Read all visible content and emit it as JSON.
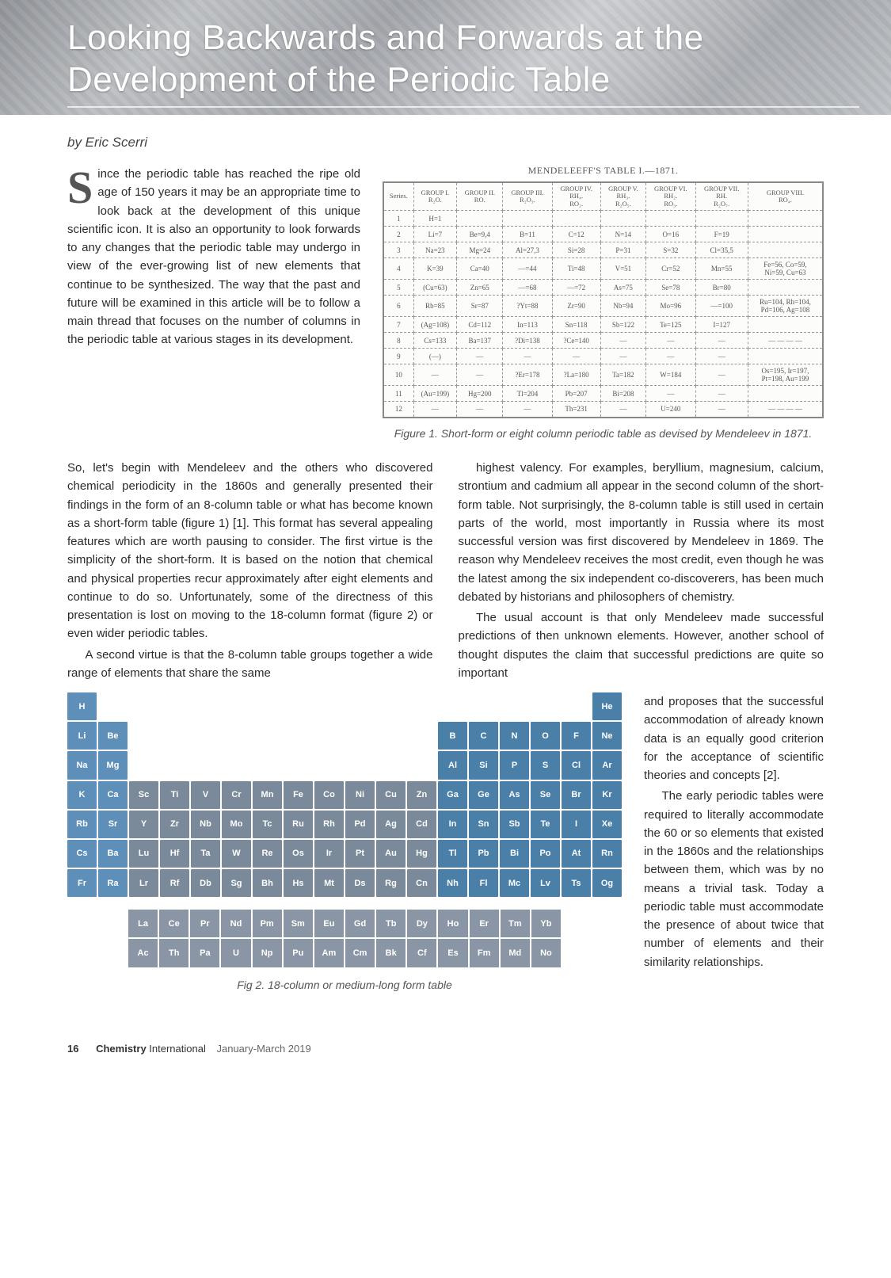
{
  "header": {
    "title": "Looking Backwards and Forwards at the Development of the Periodic Table"
  },
  "byline": "by Eric Scerri",
  "intro_dropcap": "S",
  "intro_text": "ince the periodic table has reached the ripe old age of 150 years it may be an appropriate time to look back at the development of this unique scientific icon. It is also an opportunity to look forwards to any changes that the periodic table may undergo in view of the ever-growing list of new elements that continue to be synthesized. The way that the past and future will be examined in this article will be to follow a main thread that focuses on the number of columns in the periodic table at various stages in its development.",
  "fig1": {
    "top_caption": "MENDELEEFF'S TABLE I.—1871.",
    "headers": [
      "Series.",
      "GROUP I.\nR₂O.",
      "GROUP II.\nRO.",
      "GROUP III.\nR₂O₃.",
      "GROUP IV.\nRH₄.\nRO₂.",
      "GROUP V.\nRH₃.\nR₂O₅.",
      "GROUP VI.\nRH₂.\nRO₃.",
      "GROUP VII.\nRH.\nR₂O₇.",
      "GROUP VIII.\nRO₄."
    ],
    "rows": [
      [
        "1",
        "H=1",
        "",
        "",
        "",
        "",
        "",
        "",
        ""
      ],
      [
        "2",
        "Li=7",
        "Be=9,4",
        "B=11",
        "C=12",
        "N=14",
        "O=16",
        "F=19",
        ""
      ],
      [
        "3",
        "Na=23",
        "Mg=24",
        "Al=27,3",
        "Si=28",
        "P=31",
        "S=32",
        "Cl=35,5",
        ""
      ],
      [
        "4",
        "K=39",
        "Ca=40",
        "—=44",
        "Ti=48",
        "V=51",
        "Cr=52",
        "Mn=55",
        "Fe=56, Co=59,\nNi=59, Cu=63"
      ],
      [
        "5",
        "(Cu=63)",
        "Zn=65",
        "—=68",
        "—=72",
        "As=75",
        "Se=78",
        "Br=80",
        ""
      ],
      [
        "6",
        "Rb=85",
        "Sr=87",
        "?Yt=88",
        "Zr=90",
        "Nb=94",
        "Mo=96",
        "—=100",
        "Ru=104, Rh=104,\nPd=106, Ag=108"
      ],
      [
        "7",
        "(Ag=108)",
        "Cd=112",
        "In=113",
        "Sn=118",
        "Sb=122",
        "Te=125",
        "I=127",
        ""
      ],
      [
        "8",
        "Cs=133",
        "Ba=137",
        "?Di=138",
        "?Ce=140",
        "—",
        "—",
        "—",
        "— — — —"
      ],
      [
        "9",
        "(—)",
        "—",
        "—",
        "—",
        "—",
        "—",
        "—",
        ""
      ],
      [
        "10",
        "—",
        "—",
        "?Er=178",
        "?La=180",
        "Ta=182",
        "W=184",
        "—",
        "Os=195, Ir=197,\nPt=198, Au=199"
      ],
      [
        "11",
        "(Au=199)",
        "Hg=200",
        "Tl=204",
        "Pb=207",
        "Bi=208",
        "—",
        "—",
        ""
      ],
      [
        "12",
        "—",
        "—",
        "—",
        "Th=231",
        "—",
        "U=240",
        "—",
        "— — — —"
      ]
    ],
    "caption": "Figure 1. Short-form or eight column periodic table as devised by Mendeleev in 1871."
  },
  "body": {
    "p1": "So, let's begin with Mendeleev and the others who discovered chemical periodicity in the 1860s and generally presented their findings in the form of an 8-column table or what has become known as a short-form table (figure 1) [1]. This format has several appealing features which are worth pausing to consider. The first virtue is the simplicity of the short-form. It is based on the notion that chemical and physical properties recur approximately after eight elements and continue to do so. Unfortunately, some of the directness of this presentation is lost on moving to the 18-column format (figure 2) or even wider periodic tables.",
    "p2": "A second virtue is that the 8-column table groups together a wide range of elements that share the same",
    "p3": "highest valency. For examples, beryllium, magnesium, calcium, strontium and cadmium all appear in the second column of the short-form table. Not surprisingly, the 8-column table is still used in certain parts of the world, most importantly in Russia where its most successful version was first discovered by Mendeleev in 1869. The reason why Mendeleev receives the most credit, even though he was the latest among the six independent co-discoverers, has been much debated by historians and philosophers of chemistry.",
    "p4": "The usual account is that only Mendeleev made successful predictions of then unknown elements. However, another school of thought disputes the claim that successful predictions are quite so important",
    "side1": "and proposes that the successful accommodation of already known data is an equally good criterion for the acceptance of scientific theories and concepts [2].",
    "side2": "The early periodic tables were required to literally accommodate the 60 or so elements that existed in the 1860s and the relationships between them, which was by no means a trivial task. Today a periodic table must accommodate the presence of about twice that number of elements and their similarity relationships."
  },
  "ptable": {
    "colors": {
      "sblock": "#5d8fb8",
      "pblock": "#4a7fa8",
      "dblock": "#7a8a9a",
      "fblock": "#8a95a5",
      "he": "#4a7fa8"
    },
    "rows": [
      [
        [
          "H",
          "sblock"
        ],
        null,
        null,
        null,
        null,
        null,
        null,
        null,
        null,
        null,
        null,
        null,
        null,
        null,
        null,
        null,
        null,
        [
          "He",
          "he"
        ]
      ],
      [
        [
          "Li",
          "sblock"
        ],
        [
          "Be",
          "sblock"
        ],
        null,
        null,
        null,
        null,
        null,
        null,
        null,
        null,
        null,
        null,
        [
          "B",
          "pblock"
        ],
        [
          "C",
          "pblock"
        ],
        [
          "N",
          "pblock"
        ],
        [
          "O",
          "pblock"
        ],
        [
          "F",
          "pblock"
        ],
        [
          "Ne",
          "pblock"
        ]
      ],
      [
        [
          "Na",
          "sblock"
        ],
        [
          "Mg",
          "sblock"
        ],
        null,
        null,
        null,
        null,
        null,
        null,
        null,
        null,
        null,
        null,
        [
          "Al",
          "pblock"
        ],
        [
          "Si",
          "pblock"
        ],
        [
          "P",
          "pblock"
        ],
        [
          "S",
          "pblock"
        ],
        [
          "Cl",
          "pblock"
        ],
        [
          "Ar",
          "pblock"
        ]
      ],
      [
        [
          "K",
          "sblock"
        ],
        [
          "Ca",
          "sblock"
        ],
        [
          "Sc",
          "dblock"
        ],
        [
          "Ti",
          "dblock"
        ],
        [
          "V",
          "dblock"
        ],
        [
          "Cr",
          "dblock"
        ],
        [
          "Mn",
          "dblock"
        ],
        [
          "Fe",
          "dblock"
        ],
        [
          "Co",
          "dblock"
        ],
        [
          "Ni",
          "dblock"
        ],
        [
          "Cu",
          "dblock"
        ],
        [
          "Zn",
          "dblock"
        ],
        [
          "Ga",
          "pblock"
        ],
        [
          "Ge",
          "pblock"
        ],
        [
          "As",
          "pblock"
        ],
        [
          "Se",
          "pblock"
        ],
        [
          "Br",
          "pblock"
        ],
        [
          "Kr",
          "pblock"
        ]
      ],
      [
        [
          "Rb",
          "sblock"
        ],
        [
          "Sr",
          "sblock"
        ],
        [
          "Y",
          "dblock"
        ],
        [
          "Zr",
          "dblock"
        ],
        [
          "Nb",
          "dblock"
        ],
        [
          "Mo",
          "dblock"
        ],
        [
          "Tc",
          "dblock"
        ],
        [
          "Ru",
          "dblock"
        ],
        [
          "Rh",
          "dblock"
        ],
        [
          "Pd",
          "dblock"
        ],
        [
          "Ag",
          "dblock"
        ],
        [
          "Cd",
          "dblock"
        ],
        [
          "In",
          "pblock"
        ],
        [
          "Sn",
          "pblock"
        ],
        [
          "Sb",
          "pblock"
        ],
        [
          "Te",
          "pblock"
        ],
        [
          "I",
          "pblock"
        ],
        [
          "Xe",
          "pblock"
        ]
      ],
      [
        [
          "Cs",
          "sblock"
        ],
        [
          "Ba",
          "sblock"
        ],
        [
          "Lu",
          "dblock"
        ],
        [
          "Hf",
          "dblock"
        ],
        [
          "Ta",
          "dblock"
        ],
        [
          "W",
          "dblock"
        ],
        [
          "Re",
          "dblock"
        ],
        [
          "Os",
          "dblock"
        ],
        [
          "Ir",
          "dblock"
        ],
        [
          "Pt",
          "dblock"
        ],
        [
          "Au",
          "dblock"
        ],
        [
          "Hg",
          "dblock"
        ],
        [
          "Tl",
          "pblock"
        ],
        [
          "Pb",
          "pblock"
        ],
        [
          "Bi",
          "pblock"
        ],
        [
          "Po",
          "pblock"
        ],
        [
          "At",
          "pblock"
        ],
        [
          "Rn",
          "pblock"
        ]
      ],
      [
        [
          "Fr",
          "sblock"
        ],
        [
          "Ra",
          "sblock"
        ],
        [
          "Lr",
          "dblock"
        ],
        [
          "Rf",
          "dblock"
        ],
        [
          "Db",
          "dblock"
        ],
        [
          "Sg",
          "dblock"
        ],
        [
          "Bh",
          "dblock"
        ],
        [
          "Hs",
          "dblock"
        ],
        [
          "Mt",
          "dblock"
        ],
        [
          "Ds",
          "dblock"
        ],
        [
          "Rg",
          "dblock"
        ],
        [
          "Cn",
          "dblock"
        ],
        [
          "Nh",
          "pblock"
        ],
        [
          "Fl",
          "pblock"
        ],
        [
          "Mc",
          "pblock"
        ],
        [
          "Lv",
          "pblock"
        ],
        [
          "Ts",
          "pblock"
        ],
        [
          "Og",
          "pblock"
        ]
      ]
    ],
    "fblock": [
      [
        [
          "La",
          "fblock"
        ],
        [
          "Ce",
          "fblock"
        ],
        [
          "Pr",
          "fblock"
        ],
        [
          "Nd",
          "fblock"
        ],
        [
          "Pm",
          "fblock"
        ],
        [
          "Sm",
          "fblock"
        ],
        [
          "Eu",
          "fblock"
        ],
        [
          "Gd",
          "fblock"
        ],
        [
          "Tb",
          "fblock"
        ],
        [
          "Dy",
          "fblock"
        ],
        [
          "Ho",
          "fblock"
        ],
        [
          "Er",
          "fblock"
        ],
        [
          "Tm",
          "fblock"
        ],
        [
          "Yb",
          "fblock"
        ]
      ],
      [
        [
          "Ac",
          "fblock"
        ],
        [
          "Th",
          "fblock"
        ],
        [
          "Pa",
          "fblock"
        ],
        [
          "U",
          "fblock"
        ],
        [
          "Np",
          "fblock"
        ],
        [
          "Pu",
          "fblock"
        ],
        [
          "Am",
          "fblock"
        ],
        [
          "Cm",
          "fblock"
        ],
        [
          "Bk",
          "fblock"
        ],
        [
          "Cf",
          "fblock"
        ],
        [
          "Es",
          "fblock"
        ],
        [
          "Fm",
          "fblock"
        ],
        [
          "Md",
          "fblock"
        ],
        [
          "No",
          "fblock"
        ]
      ]
    ],
    "caption": "Fig 2. 18-column or medium-long form table"
  },
  "footer": {
    "page": "16",
    "magazine": "Chemistry",
    "magazine_sub": "International",
    "issue": "January-March 2019"
  }
}
